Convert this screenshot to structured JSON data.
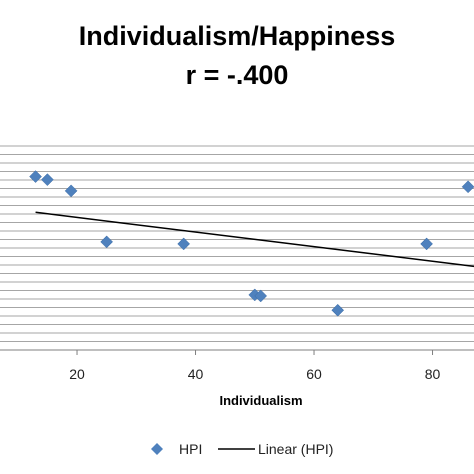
{
  "chart_data": {
    "type": "scatter",
    "title": "Individualism/Happiness",
    "subtitle": "r = -.400",
    "xlabel": "Individualism",
    "ylabel": "",
    "xlim": [
      7,
      87
    ],
    "ylim": [
      0,
      100
    ],
    "x_ticks": [
      20,
      40,
      60,
      80
    ],
    "x_tick_labels": [
      "20",
      "40",
      "60",
      "80"
    ],
    "grid": true,
    "legend_position": "bottom",
    "series": [
      {
        "name": "HPI",
        "kind": "scatter",
        "marker": "diamond",
        "color": "#4f81bd",
        "points": [
          {
            "x": 13,
            "y": 85
          },
          {
            "x": 15,
            "y": 83.5
          },
          {
            "x": 19,
            "y": 78
          },
          {
            "x": 25,
            "y": 53
          },
          {
            "x": 38,
            "y": 52
          },
          {
            "x": 50,
            "y": 27
          },
          {
            "x": 51,
            "y": 26.5
          },
          {
            "x": 64,
            "y": 19.5
          },
          {
            "x": 79,
            "y": 52
          },
          {
            "x": 86,
            "y": 80
          }
        ]
      },
      {
        "name": "Linear (HPI)",
        "kind": "line",
        "color": "#000000",
        "points": [
          {
            "x": 13,
            "y": 67.5
          },
          {
            "x": 87,
            "y": 41
          }
        ]
      }
    ]
  }
}
